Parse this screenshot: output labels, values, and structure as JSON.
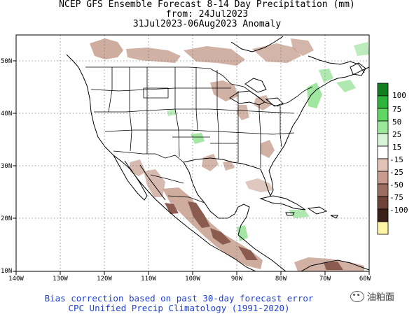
{
  "title": {
    "line1": "NCEP GFS Ensemble Forecast 8-14 Day Precipitation (mm)",
    "line2": "from: 24Jul2023",
    "line3": "31Jul2023-06Aug2023 Anomaly"
  },
  "footer": {
    "line1": "Bias correction based on past 30-day forecast error",
    "line2": "CPC Unified Precip Climatology (1991-2020)"
  },
  "watermark": {
    "text": "油粕面"
  },
  "axes": {
    "x_ticks": [
      "140W",
      "130W",
      "120W",
      "110W",
      "100W",
      "90W",
      "80W",
      "70W",
      "60W"
    ],
    "y_ticks": [
      "50N",
      "40N",
      "30N",
      "20N",
      "10N"
    ]
  },
  "legend": {
    "labels": [
      "100",
      "75",
      "50",
      "25",
      "15",
      "-15",
      "-25",
      "-50",
      "-75",
      "-100"
    ],
    "colors": [
      "#0f7f1f",
      "#2eb43a",
      "#62d662",
      "#9be89b",
      "#d7f5d7",
      "#ffffff",
      "#e3c3b8",
      "#c89b8e",
      "#9e6d61",
      "#6f4338",
      "#3b1f19",
      "#fff5a6"
    ]
  },
  "colors": {
    "dry": "#c9a394",
    "dry_strong": "#8c5b4f",
    "wet": "#8fe08f"
  }
}
